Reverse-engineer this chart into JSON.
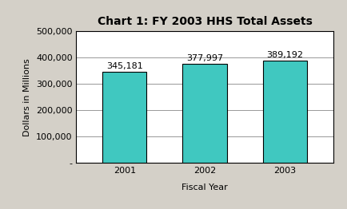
{
  "title": "Chart 1: FY 2003 HHS Total Assets",
  "categories": [
    "2001",
    "2002",
    "2003"
  ],
  "values": [
    345181,
    377997,
    389192
  ],
  "labels": [
    "345,181",
    "377,997",
    "389,192"
  ],
  "bar_color": "#40C8C0",
  "bar_edge_color": "#000000",
  "xlabel": "Fiscal Year",
  "ylabel": "Dollars in Millions",
  "ylim": [
    0,
    500000
  ],
  "yticks": [
    0,
    100000,
    200000,
    300000,
    400000,
    500000
  ],
  "ytick_labels": [
    "-",
    "100,000",
    "200,000",
    "300,000",
    "400,000",
    "500,000"
  ],
  "figure_bg_color": "#d4d0c8",
  "plot_bg_color": "#ffffff",
  "grid_color": "#888888",
  "title_fontsize": 10,
  "label_fontsize": 8,
  "tick_fontsize": 8,
  "bar_width": 0.55
}
